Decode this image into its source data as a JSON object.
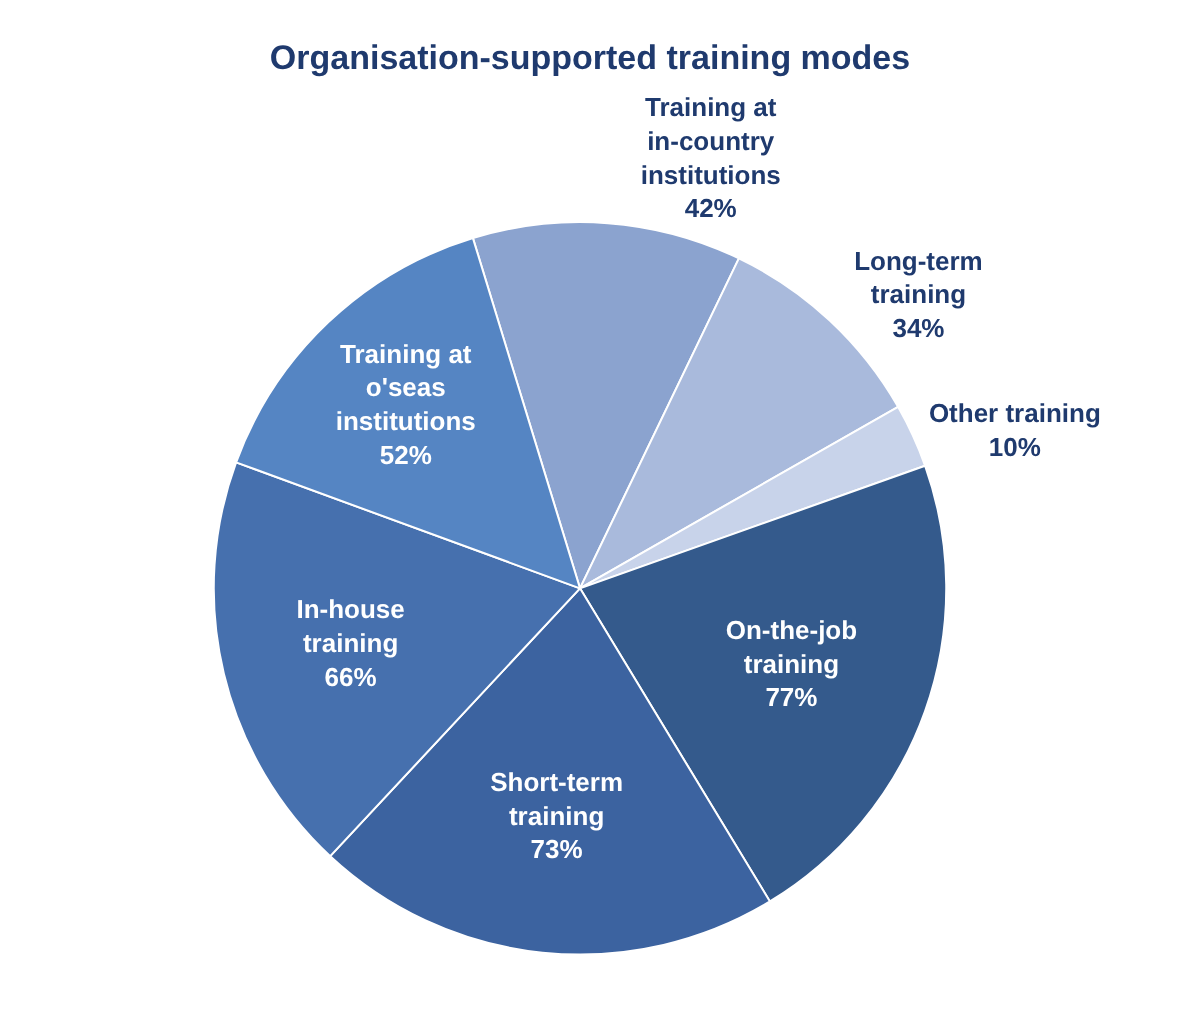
{
  "chart_data": {
    "type": "pie",
    "title": "Organisation-supported training modes",
    "categories": [
      "Training at in-country institutions",
      "Long-term training",
      "Other training",
      "On-the-job training",
      "Short-term training",
      "In-house training",
      "Training at o'seas institutions"
    ],
    "values": [
      42,
      34,
      10,
      77,
      73,
      66,
      52
    ],
    "value_labels": [
      "42%",
      "34%",
      "10%",
      "77%",
      "73%",
      "66%",
      "52%"
    ],
    "colors": [
      "#8ba3cf",
      "#a9badc",
      "#c8d3ea",
      "#345a8c",
      "#3c63a0",
      "#4670ae",
      "#5585c3"
    ],
    "legend": false
  }
}
